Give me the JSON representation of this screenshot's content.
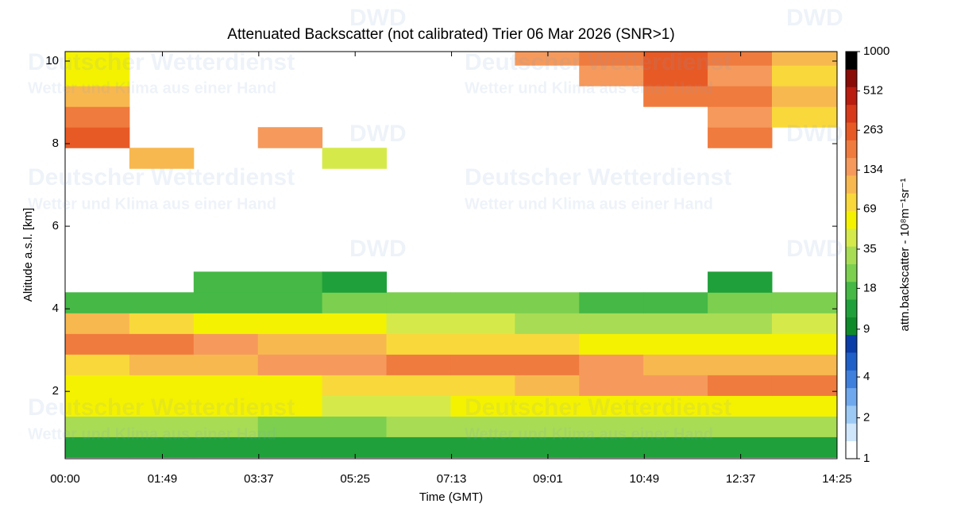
{
  "chart_data": {
    "type": "heatmap",
    "title": "Attenuated Backscatter (not calibrated) Trier 06 Mar 2026 (SNR>1)",
    "x_label": "Time (GMT)",
    "y_label": "Altitude a.s.l. [km]",
    "colorbar_label": "attn.backscatter - 10⁸m⁻¹sr⁻¹",
    "watermark": {
      "logo": "DWD",
      "name": "Deutscher Wetterdienst",
      "slogan": "Wetter und Klima aus einer Hand"
    },
    "xlim": [
      0,
      865
    ],
    "xticks": [
      {
        "value": 0,
        "label": "00:00"
      },
      {
        "value": 109,
        "label": "01:49"
      },
      {
        "value": 217,
        "label": "03:37"
      },
      {
        "value": 325,
        "label": "05:25"
      },
      {
        "value": 433,
        "label": "07:13"
      },
      {
        "value": 541,
        "label": "09:01"
      },
      {
        "value": 649,
        "label": "10:49"
      },
      {
        "value": 757,
        "label": "12:37"
      },
      {
        "value": 865,
        "label": "14:25"
      }
    ],
    "ylim": [
      0.37,
      10.23
    ],
    "yticks": [
      2,
      4,
      6,
      8,
      10
    ],
    "x_edges": [
      0,
      72,
      144,
      216,
      288,
      360,
      432,
      504,
      576,
      648,
      720,
      792,
      865
    ],
    "y_edges": [
      0.4,
      0.9,
      1.4,
      1.9,
      2.4,
      2.9,
      3.4,
      3.9,
      4.4,
      4.9,
      5.4,
      5.9,
      6.4,
      6.9,
      7.4,
      7.9,
      8.4,
      8.9,
      9.4,
      9.9,
      10.4
    ],
    "z": [
      [
        14,
        14,
        13,
        13,
        13,
        13,
        14,
        14,
        14,
        14,
        14,
        14
      ],
      [
        30,
        28,
        28,
        27,
        27,
        28,
        30,
        30,
        30,
        32,
        32,
        32
      ],
      [
        50,
        50,
        50,
        50,
        48,
        48,
        50,
        55,
        60,
        60,
        65,
        65
      ],
      [
        60,
        60,
        65,
        65,
        70,
        75,
        85,
        100,
        130,
        160,
        200,
        220
      ],
      [
        90,
        100,
        110,
        130,
        150,
        180,
        200,
        180,
        150,
        120,
        110,
        100
      ],
      [
        180,
        170,
        140,
        120,
        100,
        90,
        80,
        70,
        60,
        55,
        50,
        50
      ],
      [
        100,
        80,
        60,
        55,
        50,
        45,
        40,
        35,
        35,
        35,
        35,
        40
      ],
      [
        18,
        18,
        20,
        20,
        22,
        25,
        25,
        25,
        20,
        20,
        22,
        25
      ],
      [
        null,
        null,
        15,
        16,
        14,
        null,
        null,
        null,
        null,
        null,
        12,
        null
      ],
      [
        null,
        null,
        null,
        null,
        null,
        null,
        null,
        null,
        null,
        null,
        null,
        null
      ],
      [
        null,
        null,
        null,
        null,
        null,
        null,
        null,
        null,
        null,
        null,
        null,
        null
      ],
      [
        null,
        null,
        null,
        null,
        null,
        null,
        null,
        null,
        null,
        null,
        null,
        null
      ],
      [
        null,
        null,
        null,
        null,
        null,
        null,
        null,
        null,
        null,
        null,
        null,
        null
      ],
      [
        null,
        null,
        null,
        null,
        null,
        null,
        null,
        null,
        null,
        null,
        null,
        null
      ],
      [
        null,
        120,
        null,
        null,
        40,
        null,
        null,
        null,
        null,
        null,
        null,
        null
      ],
      [
        300,
        null,
        null,
        150,
        null,
        null,
        null,
        null,
        null,
        null,
        200,
        null
      ],
      [
        200,
        null,
        null,
        null,
        null,
        null,
        null,
        null,
        null,
        null,
        150,
        80
      ],
      [
        100,
        null,
        null,
        null,
        null,
        null,
        null,
        null,
        null,
        200,
        200,
        100
      ],
      [
        50,
        null,
        null,
        null,
        null,
        null,
        null,
        null,
        150,
        250,
        150,
        80
      ],
      [
        50,
        null,
        null,
        null,
        null,
        null,
        null,
        150,
        200,
        250,
        180,
        100
      ]
    ],
    "colorbar": {
      "log": true,
      "lim": [
        1,
        1000
      ],
      "ticks": [
        1,
        2,
        4,
        9,
        18,
        35,
        69,
        134,
        263,
        512,
        1000
      ],
      "colors": [
        "#ffffff",
        "#cfe6fb",
        "#9ccaf5",
        "#6fa8ec",
        "#3f80dd",
        "#1f5fc8",
        "#0b3da8",
        "#0f8a2a",
        "#20a03a",
        "#45b845",
        "#7ccf4f",
        "#a8dc55",
        "#d5ea4a",
        "#f5f200",
        "#f9d83c",
        "#f8b850",
        "#f59a5c",
        "#f07b3e",
        "#e85a25",
        "#d63a1a",
        "#b81d10",
        "#8a0c06",
        "#000000"
      ]
    }
  }
}
